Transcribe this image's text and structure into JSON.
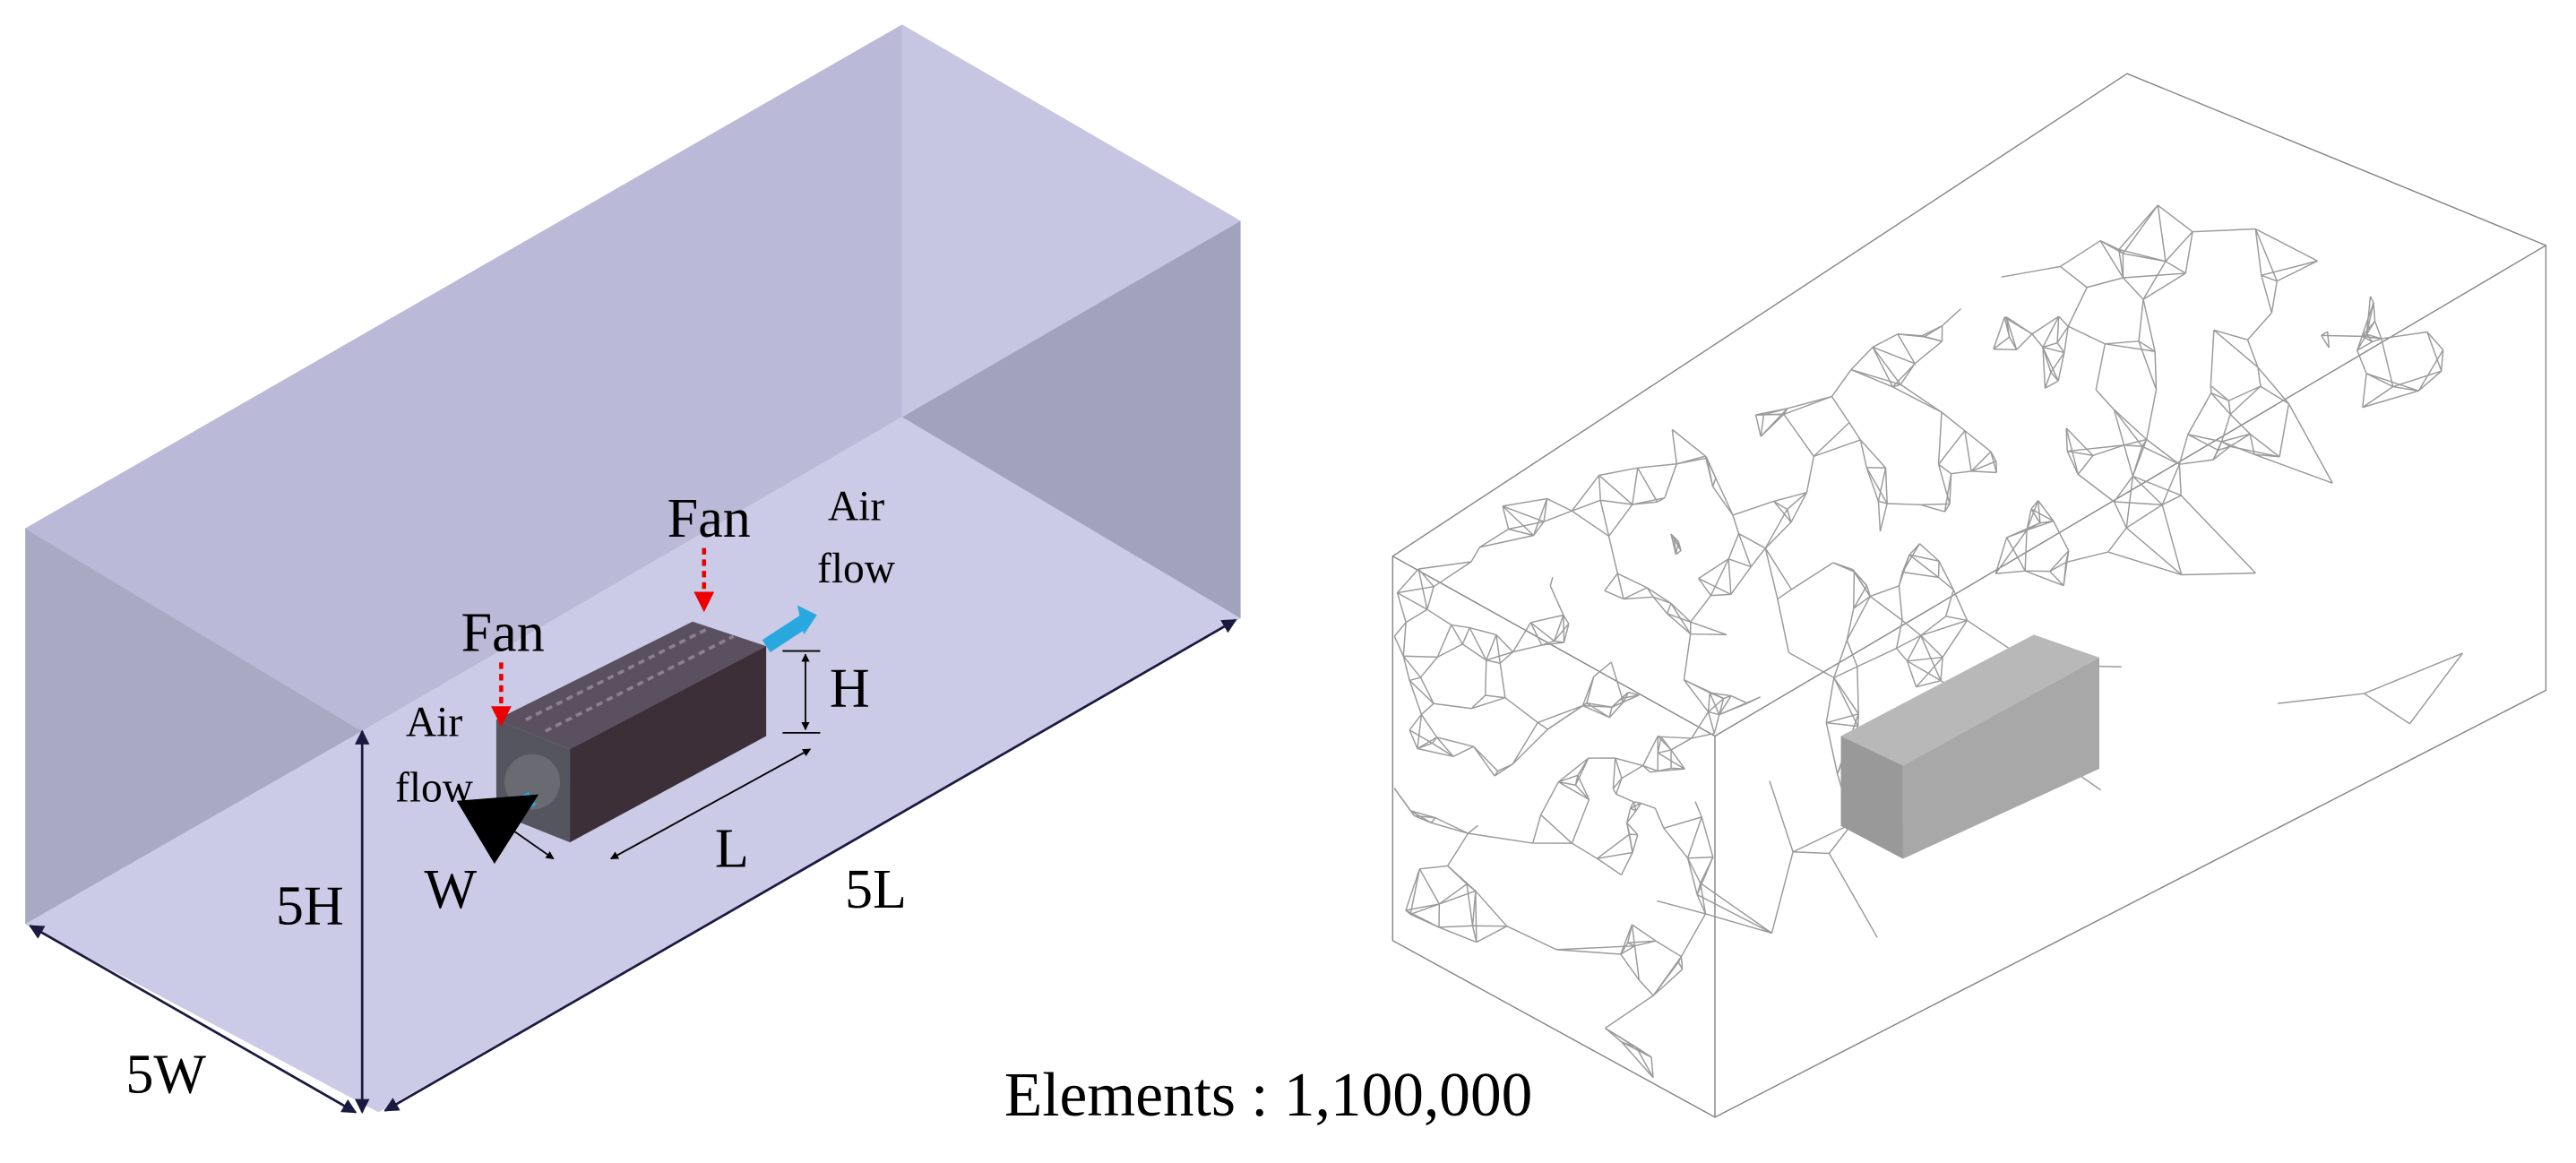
{
  "left_panel": {
    "fan_labels": [
      "Fan",
      "Fan"
    ],
    "airflow_labels": [
      [
        "Air",
        "flow"
      ],
      [
        "Air",
        "flow"
      ]
    ],
    "module_dimensions": {
      "height": "H",
      "length": "L",
      "width": "W"
    },
    "domain_dimensions": {
      "height": "5H",
      "length": "5L",
      "width": "5W"
    }
  },
  "right_panel": {
    "caption": "Elements : 1,100,000"
  }
}
